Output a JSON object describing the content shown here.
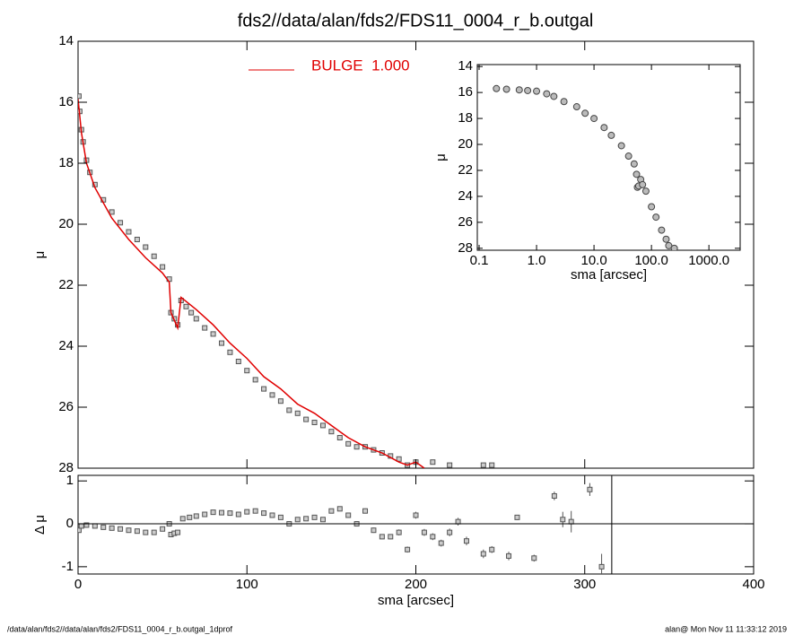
{
  "chart_data": [
    {
      "type": "scatter",
      "title": "fds2//data/alan/fds2/FDS11_0004_r_b.outgal",
      "ylabel": "μ",
      "xlim": [
        0,
        400
      ],
      "ylim": [
        28,
        14
      ],
      "yticks": [
        14,
        16,
        18,
        20,
        22,
        24,
        26,
        28
      ],
      "legend": "top-center",
      "series": [
        {
          "color": "#555555",
          "style": "markers",
          "x": [
            0.5,
            1,
            2,
            3,
            5,
            7,
            10,
            15,
            20,
            25,
            30,
            35,
            40,
            45,
            50,
            54,
            55,
            57,
            59,
            61,
            64,
            67,
            70,
            75,
            80,
            85,
            90,
            95,
            100,
            105,
            110,
            115,
            120,
            125,
            130,
            135,
            140,
            145,
            150,
            155,
            160,
            165,
            170,
            175,
            180,
            185,
            190,
            195,
            200,
            210,
            220,
            240,
            245
          ],
          "values": [
            15.8,
            16.3,
            16.9,
            17.3,
            17.9,
            18.3,
            18.7,
            19.2,
            19.6,
            19.95,
            20.25,
            20.5,
            20.75,
            21.05,
            21.4,
            21.8,
            22.9,
            23.1,
            23.3,
            22.5,
            22.7,
            22.9,
            23.1,
            23.4,
            23.6,
            23.9,
            24.2,
            24.5,
            24.8,
            25.1,
            25.4,
            25.6,
            25.8,
            26.1,
            26.2,
            26.4,
            26.5,
            26.6,
            26.8,
            27.0,
            27.2,
            27.3,
            27.3,
            27.4,
            27.5,
            27.6,
            27.7,
            27.9,
            27.8,
            27.8,
            27.9,
            27.9,
            27.9
          ]
        },
        {
          "name": "BULGE  1.000",
          "color": "#e00000",
          "style": "line",
          "x": [
            0,
            2,
            5,
            10,
            20,
            30,
            40,
            50,
            54,
            55,
            59,
            61,
            70,
            80,
            90,
            100,
            110,
            120,
            130,
            140,
            150,
            160,
            170,
            180,
            190,
            195,
            200,
            205
          ],
          "values": [
            15.9,
            17,
            18,
            18.8,
            19.8,
            20.5,
            21.1,
            21.6,
            21.9,
            22.9,
            23.4,
            22.4,
            22.8,
            23.3,
            23.9,
            24.4,
            25.0,
            25.4,
            25.9,
            26.2,
            26.6,
            27.0,
            27.3,
            27.5,
            27.8,
            27.9,
            27.8,
            28.0
          ]
        }
      ]
    },
    {
      "type": "scatter",
      "xlabel": "sma [arcsec]",
      "ylabel": "μ",
      "xlog": true,
      "xlim": [
        0.093,
        3500
      ],
      "ylim": [
        28.15,
        13.85
      ],
      "xticks": [
        0.1,
        {
          "value": 1,
          "label": "1.0"
        },
        {
          "value": 10,
          "label": "10.0"
        },
        {
          "value": 100,
          "label": "100.0"
        },
        {
          "value": 1000,
          "label": "1000.0"
        }
      ],
      "yticks": [
        14,
        16,
        18,
        20,
        22,
        24,
        26,
        28
      ],
      "series": [
        {
          "color": "#444444",
          "style": "circles",
          "x": [
            0.2,
            0.3,
            0.5,
            0.7,
            1,
            1.5,
            2,
            3,
            5,
            7,
            10,
            15,
            20,
            30,
            40,
            50,
            55,
            57,
            60,
            65,
            70,
            80,
            100,
            120,
            150,
            180,
            200,
            250
          ],
          "values": [
            15.7,
            15.75,
            15.8,
            15.85,
            15.9,
            16.1,
            16.3,
            16.7,
            17.1,
            17.6,
            18.0,
            18.7,
            19.3,
            20.1,
            20.9,
            21.5,
            22.3,
            23.3,
            23.2,
            22.7,
            23.1,
            23.6,
            24.8,
            25.6,
            26.6,
            27.3,
            27.8,
            28.0
          ]
        }
      ]
    },
    {
      "type": "errorbar",
      "xlabel": "sma [arcsec]",
      "ylabel": "Δ μ",
      "xlim": [
        0,
        400
      ],
      "ylim": [
        -1.17,
        1.13
      ],
      "xticks": [
        0,
        100,
        200,
        300,
        400
      ],
      "yticks": [
        1,
        0,
        -1
      ],
      "vline": 316,
      "series": [
        {
          "color": "#555555",
          "x": [
            0.5,
            2,
            5,
            10,
            15,
            20,
            25,
            30,
            35,
            40,
            45,
            50,
            54,
            55,
            57,
            59,
            62,
            66,
            70,
            75,
            80,
            85,
            90,
            95,
            100,
            105,
            110,
            115,
            120,
            125,
            130,
            135,
            140,
            145,
            150,
            155,
            160,
            165,
            170,
            175,
            180,
            185,
            190,
            195,
            200,
            205,
            210,
            215,
            220,
            225,
            230,
            240,
            245,
            255,
            260,
            270,
            282,
            287,
            292,
            303,
            310
          ],
          "values": [
            -0.15,
            -0.05,
            -0.03,
            -0.05,
            -0.08,
            -0.1,
            -0.12,
            -0.15,
            -0.17,
            -0.2,
            -0.2,
            -0.12,
            0.0,
            -0.25,
            -0.22,
            -0.2,
            0.12,
            0.15,
            0.18,
            0.22,
            0.27,
            0.26,
            0.25,
            0.22,
            0.28,
            0.3,
            0.25,
            0.2,
            0.15,
            0.0,
            0.1,
            0.12,
            0.15,
            0.1,
            0.3,
            0.35,
            0.2,
            0.0,
            0.3,
            -0.15,
            -0.3,
            -0.3,
            -0.2,
            -0.6,
            0.2,
            -0.2,
            -0.3,
            -0.45,
            -0.2,
            0.05,
            -0.4,
            -0.7,
            -0.6,
            -0.75,
            0.15,
            -0.8,
            0.65,
            0.1,
            0.05,
            0.8,
            -1.0
          ],
          "errors": [
            0.02,
            0.02,
            0.02,
            0.02,
            0.02,
            0.02,
            0.02,
            0.02,
            0.02,
            0.02,
            0.02,
            0.02,
            0.02,
            0.03,
            0.03,
            0.03,
            0.03,
            0.03,
            0.03,
            0.03,
            0.03,
            0.03,
            0.03,
            0.03,
            0.03,
            0.03,
            0.03,
            0.03,
            0.04,
            0.04,
            0.04,
            0.04,
            0.04,
            0.04,
            0.05,
            0.05,
            0.05,
            0.05,
            0.06,
            0.06,
            0.06,
            0.06,
            0.07,
            0.07,
            0.08,
            0.08,
            0.08,
            0.08,
            0.09,
            0.09,
            0.1,
            0.1,
            0.08,
            0.1,
            0.06,
            0.08,
            0.1,
            0.18,
            0.25,
            0.15,
            0.3
          ]
        }
      ]
    }
  ],
  "footer": {
    "left": "/data/alan/fds2//data/alan/fds2/FDS11_0004_r_b.outgal_1dprof",
    "right": "alan@  Mon Nov 11 11:33:12 2019"
  }
}
